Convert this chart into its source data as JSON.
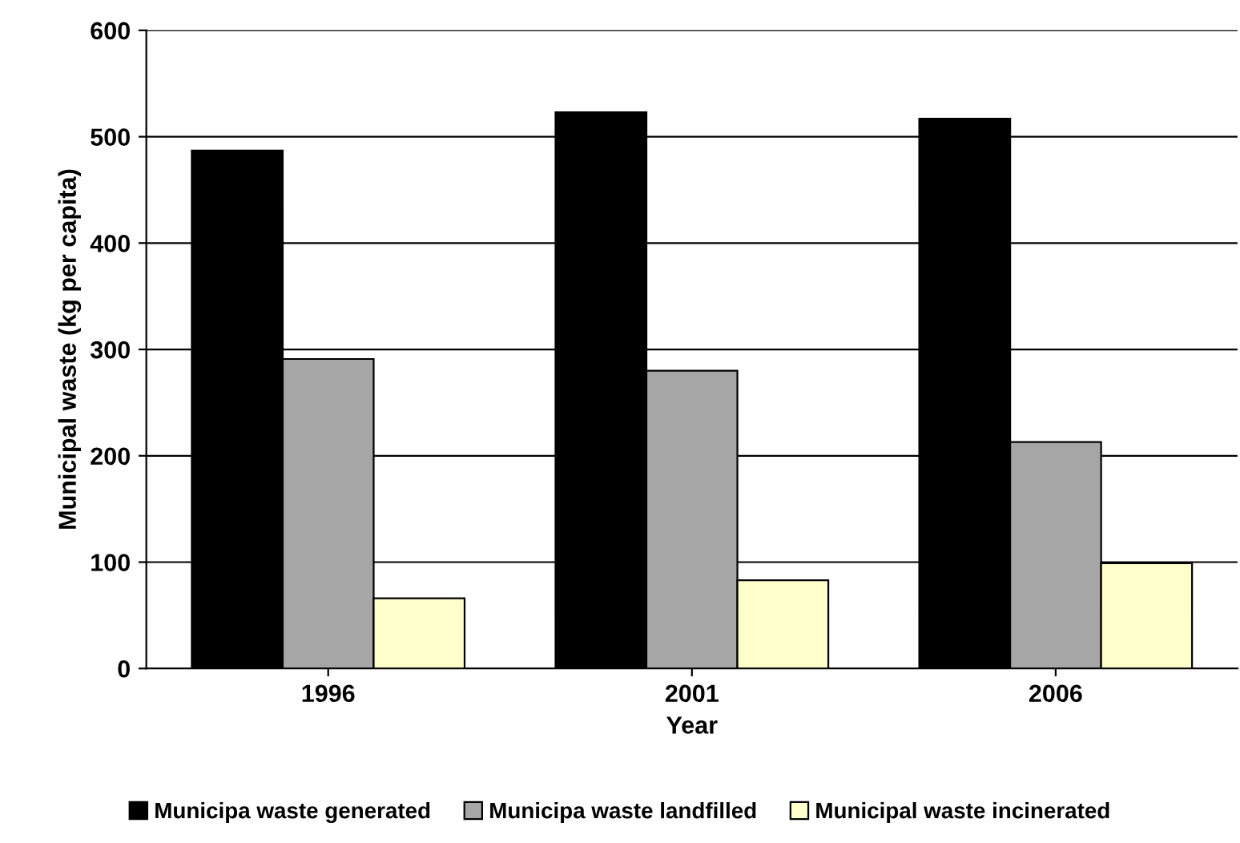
{
  "chart_data": {
    "type": "bar",
    "xlabel": "Year",
    "ylabel": "Municipal waste (kg per capita)",
    "categories": [
      "1996",
      "2001",
      "2006"
    ],
    "series": [
      {
        "name": "Municipa waste generated",
        "color": "#000000",
        "values": [
          487,
          523,
          517
        ]
      },
      {
        "name": "Municipa waste landfilled",
        "color": "#a6a6a6",
        "values": [
          291,
          280,
          213
        ]
      },
      {
        "name": "Municipal waste incinerated",
        "color": "#ffffcc",
        "values": [
          66,
          83,
          99
        ]
      }
    ],
    "ylim": [
      0,
      600
    ],
    "yticks": [
      0,
      100,
      200,
      300,
      400,
      500,
      600
    ],
    "grid": "y",
    "legend": "bottom"
  }
}
